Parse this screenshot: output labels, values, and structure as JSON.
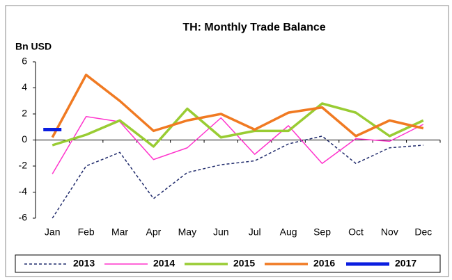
{
  "chart_data": {
    "type": "line",
    "title": "TH: Monthly Trade Balance",
    "y_label": "Bn USD",
    "categories": [
      "Jan",
      "Feb",
      "Mar",
      "Apr",
      "May",
      "Jun",
      "Jul",
      "Aug",
      "Sep",
      "Oct",
      "Nov",
      "Dec"
    ],
    "series": [
      {
        "name": "2013",
        "color": "#1f2a6b",
        "width": 1.5,
        "dashed": true,
        "values": [
          -6,
          -2,
          -0.95,
          -4.5,
          -2.5,
          -1.9,
          -1.6,
          -0.3,
          0.3,
          -1.8,
          -0.6,
          -0.4
        ]
      },
      {
        "name": "2014",
        "color": "#ff33cc",
        "width": 1.5,
        "dashed": false,
        "values": [
          -2.6,
          1.8,
          1.4,
          -1.5,
          -0.6,
          1.7,
          -1.1,
          1.1,
          -1.8,
          0.1,
          -0.1,
          1.2
        ]
      },
      {
        "name": "2015",
        "color": "#99cc33",
        "width": 3.5,
        "dashed": false,
        "values": [
          -0.4,
          0.4,
          1.5,
          -0.5,
          2.4,
          0.2,
          0.7,
          0.7,
          2.8,
          2.1,
          0.3,
          1.5
        ]
      },
      {
        "name": "2016",
        "color": "#f07a22",
        "width": 3.5,
        "dashed": false,
        "values": [
          0.2,
          5.0,
          3.0,
          0.7,
          1.5,
          2.0,
          0.8,
          2.1,
          2.5,
          0.3,
          1.5,
          0.9
        ]
      },
      {
        "name": "2017",
        "color": "#0b1ee0",
        "width": 5,
        "dashed": false,
        "values": [
          0.8,
          null,
          null,
          null,
          null,
          null,
          null,
          null,
          null,
          null,
          null,
          null
        ]
      }
    ],
    "ylim": [
      -6,
      6
    ],
    "yticks": [
      -6,
      -4,
      -2,
      0,
      2,
      4,
      6
    ],
    "grid": false,
    "legend": "bottom"
  }
}
